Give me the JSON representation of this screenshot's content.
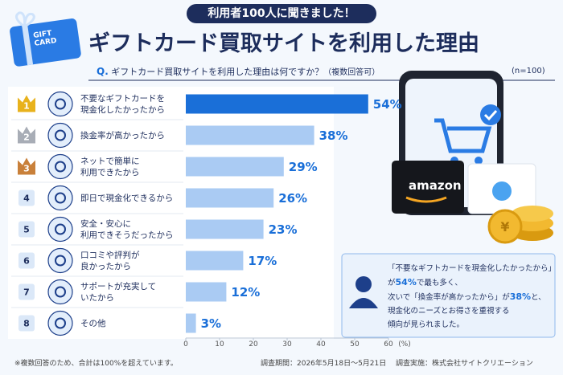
{
  "badge": "利用者100人に聞きました！",
  "gift_card": [
    "GIFT",
    "CARD"
  ],
  "brand": "amazon",
  "chart_data": {
    "type": "bar",
    "orientation": "horizontal",
    "title": "ギフトカード買取サイトを利用した理由",
    "question_prefix": "Q.",
    "question": "ギフトカード買取サイトを利用した理由は何ですか？",
    "question_note": "（複数回答可）",
    "sample_size": "(n=100)",
    "ranks": [
      1,
      2,
      3,
      4,
      5,
      6,
      7,
      8
    ],
    "categories": [
      "不要なギフトカードを\n現金化したかったから",
      "換金率が高かったから",
      "ネットで簡単に\n利用できたから",
      "即日で現金化できるから",
      "安全・安心に\n利用できそうだったから",
      "口コミや評判が\n良かったから",
      "サポートが充実して\nいたから",
      "その他"
    ],
    "values": [
      54,
      38,
      29,
      26,
      23,
      17,
      12,
      3
    ],
    "value_labels": [
      "54%",
      "38%",
      "29%",
      "26%",
      "23%",
      "17%",
      "12%",
      "3%"
    ],
    "colors": [
      "#1a6fd8",
      "#aacbf3",
      "#aacbf3",
      "#aacbf3",
      "#aacbf3",
      "#aacbf3",
      "#aacbf3",
      "#aacbf3"
    ],
    "xlim": [
      0,
      60
    ],
    "xticks": [
      0,
      10,
      20,
      30,
      40,
      50,
      60
    ],
    "x_unit": "(%)"
  },
  "callout": [
    [
      {
        "text": "「不要なギフトカードを現金化したかったから」"
      }
    ],
    [
      {
        "text": "が"
      },
      {
        "text": "54%",
        "emphasis": true
      },
      {
        "text": "で最も多く、"
      }
    ],
    [
      {
        "text": "次いで「換金率が高かったから」が"
      },
      {
        "text": "38%",
        "emphasis": true
      },
      {
        "text": "と、"
      }
    ],
    [
      {
        "text": "現金化のニーズとお得さを重視する"
      }
    ],
    [
      {
        "text": "傾向が見られました。"
      }
    ]
  ],
  "footnote": "※複数回答のため、合計は100%を超えています。",
  "period": "調査期間：2026年5月18日〜5月21日",
  "conductor": "調査実施：株式会社サイトクリエーション"
}
